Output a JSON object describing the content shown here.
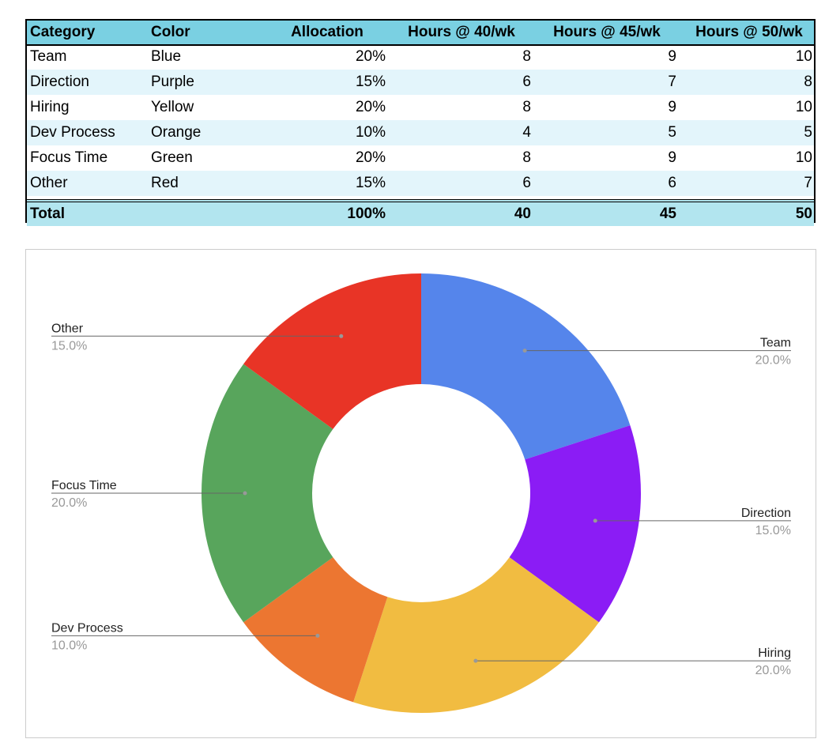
{
  "table": {
    "headers": [
      "Category",
      "Color",
      "Allocation",
      "Hours @ 40/wk",
      "Hours @ 45/wk",
      "Hours @ 50/wk"
    ],
    "rows": [
      [
        "Team",
        "Blue",
        "20%",
        "8",
        "9",
        "10"
      ],
      [
        "Direction",
        "Purple",
        "15%",
        "6",
        "7",
        "8"
      ],
      [
        "Hiring",
        "Yellow",
        "20%",
        "8",
        "9",
        "10"
      ],
      [
        "Dev Process",
        "Orange",
        "10%",
        "4",
        "5",
        "5"
      ],
      [
        "Focus Time",
        "Green",
        "20%",
        "8",
        "9",
        "10"
      ],
      [
        "Other",
        "Red",
        "15%",
        "6",
        "6",
        "7"
      ]
    ],
    "total": [
      "Total",
      "",
      "100%",
      "40",
      "45",
      "50"
    ],
    "header_color": "#7ad0e2",
    "alt_row_color": "#e3f5fb",
    "total_color": "#b2e5ef"
  },
  "chart_data": {
    "type": "pie",
    "style": "donut",
    "title": "",
    "slices": [
      {
        "label": "Team",
        "value": 20,
        "pct_label": "20.0%",
        "color": "#5585eb",
        "label_side": "right"
      },
      {
        "label": "Direction",
        "value": 15,
        "pct_label": "15.0%",
        "color": "#8b1cf5",
        "label_side": "right"
      },
      {
        "label": "Hiring",
        "value": 20,
        "pct_label": "20.0%",
        "color": "#f1bc41",
        "label_side": "right"
      },
      {
        "label": "Dev Process",
        "value": 10,
        "pct_label": "10.0%",
        "color": "#ec7631",
        "label_side": "left"
      },
      {
        "label": "Focus Time",
        "value": 20,
        "pct_label": "20.0%",
        "color": "#58a55c",
        "label_side": "left"
      },
      {
        "label": "Other",
        "value": 15,
        "pct_label": "15.0%",
        "color": "#e83426",
        "label_side": "left"
      }
    ],
    "legend": "none",
    "labels": "outside with leader lines"
  }
}
